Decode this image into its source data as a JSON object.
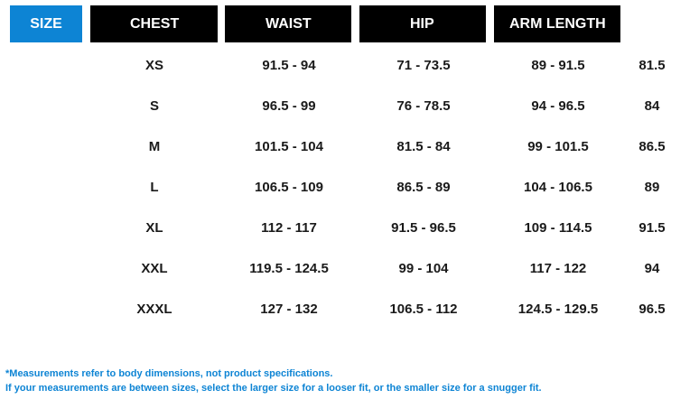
{
  "header": {
    "size": "SIZE",
    "chest": "CHEST",
    "waist": "WAIST",
    "hip": "HIP",
    "arm_length": "ARM LENGTH"
  },
  "rows": [
    {
      "size": "XS",
      "chest": "91.5 - 94",
      "waist": "71 - 73.5",
      "hip": "89 - 91.5",
      "arm": "81.5"
    },
    {
      "size": "S",
      "chest": "96.5 - 99",
      "waist": "76 - 78.5",
      "hip": "94 - 96.5",
      "arm": "84"
    },
    {
      "size": "M",
      "chest": "101.5 - 104",
      "waist": "81.5 - 84",
      "hip": "99 - 101.5",
      "arm": "86.5"
    },
    {
      "size": "L",
      "chest": "106.5 - 109",
      "waist": "86.5 - 89",
      "hip": "104 - 106.5",
      "arm": "89"
    },
    {
      "size": "XL",
      "chest": "112 - 117",
      "waist": "91.5 - 96.5",
      "hip": "109 - 114.5",
      "arm": "91.5"
    },
    {
      "size": "XXL",
      "chest": "119.5 - 124.5",
      "waist": "99 - 104",
      "hip": "117 - 122",
      "arm": "94"
    },
    {
      "size": "XXXL",
      "chest": "127 - 132",
      "waist": "106.5 - 112",
      "hip": "124.5 - 129.5",
      "arm": "96.5"
    }
  ],
  "notes": {
    "line1": "*Measurements refer to body dimensions, not product specifications.",
    "line2": "If your measurements are between sizes, select the larger size for a looser fit, or the smaller size for a snugger fit."
  },
  "colors": {
    "accent": "#0d84d4",
    "header_bg": "#000000"
  }
}
